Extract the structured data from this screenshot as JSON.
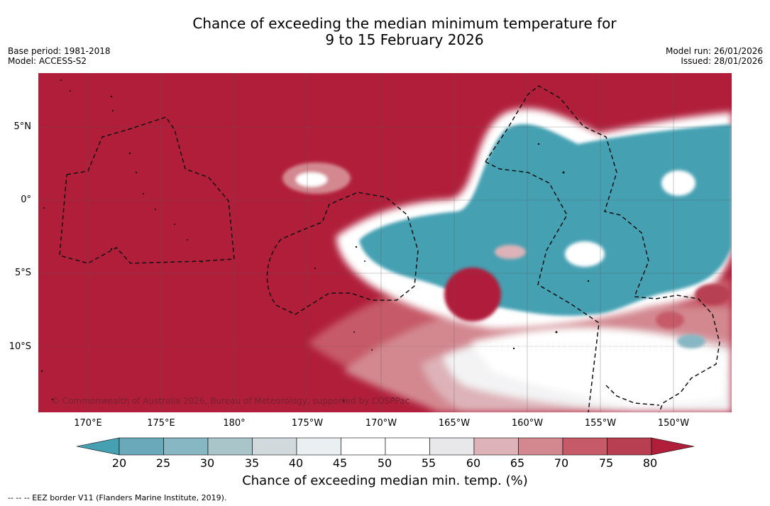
{
  "title": {
    "line1": "Chance of exceeding the median minimum temperature for",
    "line2": "9 to 15 February 2026"
  },
  "meta": {
    "base_period": "Base period: 1981-2018",
    "model": "Model: ACCESS-S2",
    "model_run": "Model run: 26/01/2026",
    "issued": "Issued: 28/01/2026"
  },
  "map": {
    "lat_labels": [
      "5°N",
      "0°",
      "5°S",
      "10°S"
    ],
    "lon_labels": [
      "170°E",
      "175°E",
      "180°",
      "175°W",
      "170°W",
      "165°W",
      "160°W",
      "155°W",
      "150°W"
    ],
    "copyright": "© Commonwealth of Australia 2026, Bureau of Meteorology, supported by COSPPac"
  },
  "colorbar": {
    "ticks": [
      "20",
      "25",
      "30",
      "35",
      "40",
      "45",
      "50",
      "55",
      "60",
      "65",
      "70",
      "75",
      "80"
    ],
    "colors": [
      "#45a0b2",
      "#6aa9b9",
      "#88b7c4",
      "#a9c5ca",
      "#d1d9dc",
      "#eaeff2",
      "#ffffff",
      "#ffffff",
      "#e8e8ea",
      "#ddb2b8",
      "#d38890",
      "#c65a68",
      "#b83f52",
      "#b01e3a"
    ],
    "title": "Chance of exceeding median min. temp. (%)"
  },
  "legend": {
    "eez": "--  --  -- EEZ border V11 (Flanders Marine Institute, 2019)."
  }
}
